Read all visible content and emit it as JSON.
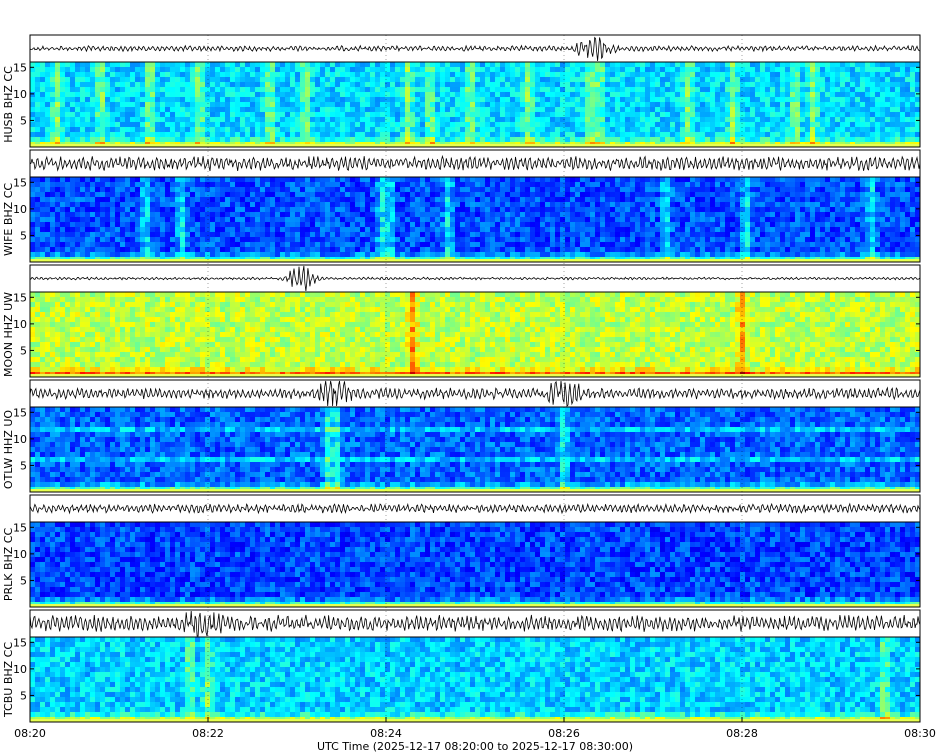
{
  "chart_data": {
    "type": "heatmap",
    "title": "",
    "xlabel": "UTC Time (2025-12-17 08:20:00 to 2025-12-17 08:30:00)",
    "x_ticks": [
      "08:20",
      "08:22",
      "08:24",
      "08:26",
      "08:28",
      "08:30"
    ],
    "xlim_minutes": [
      0,
      10
    ],
    "ylim_hz": [
      0,
      16
    ],
    "y_ticks": [
      5,
      10,
      15
    ],
    "colormap": "jet",
    "grid": true,
    "panels": [
      {
        "station": "HUSB BHZ CC",
        "base_intensity": 0.34,
        "waveform_amplitude": 0.25,
        "waveform_events_min": [
          6.35
        ],
        "bright_columns_min": [
          0.3,
          0.8,
          1.35,
          1.9,
          2.7,
          3.1,
          4.25,
          4.5,
          4.95,
          5.6,
          6.3,
          6.4,
          7.4,
          7.9,
          8.6,
          8.8
        ]
      },
      {
        "station": "WIFE BHZ CC",
        "base_intensity": 0.2,
        "waveform_amplitude": 0.65,
        "waveform_events_min": [],
        "bright_columns_min": [
          1.3,
          1.7,
          3.95,
          4.05,
          4.7,
          7.15,
          8.05,
          9.45
        ]
      },
      {
        "station": "MOON HHZ UW",
        "base_intensity": 0.56,
        "waveform_amplitude": 0.12,
        "waveform_events_min": [
          3.05
        ],
        "bright_columns_min": [
          4.3,
          8.0
        ]
      },
      {
        "station": "OTLW HHZ UO",
        "base_intensity": 0.22,
        "waveform_amplitude": 0.5,
        "waveform_events_min": [
          3.4,
          6.0
        ],
        "bright_columns_min": [
          3.35,
          3.45,
          6.0
        ]
      },
      {
        "station": "PRLK BHZ CC",
        "base_intensity": 0.19,
        "waveform_amplitude": 0.4,
        "waveform_events_min": [],
        "bright_columns_min": []
      },
      {
        "station": "TCBU BHZ CC",
        "base_intensity": 0.33,
        "waveform_amplitude": 0.75,
        "waveform_events_min": [
          1.95
        ],
        "bright_columns_min": [
          1.8,
          2.0,
          9.6
        ]
      }
    ]
  }
}
